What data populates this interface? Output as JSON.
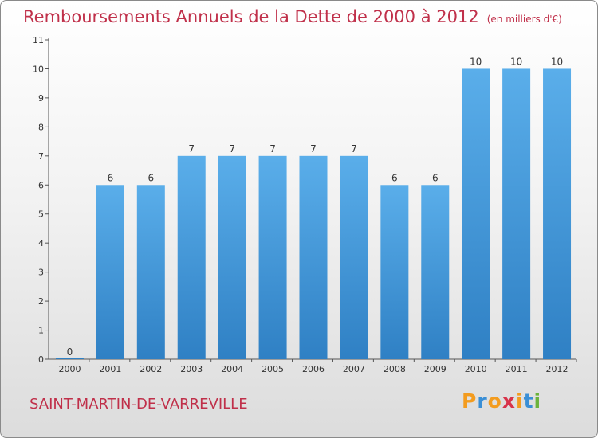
{
  "chart_data": {
    "type": "bar",
    "title": "Remboursements Annuels de la Dette de 2000 à 2012",
    "unit_label": "(en milliers d'€)",
    "xlabel": "",
    "ylabel": "",
    "categories": [
      "2000",
      "2001",
      "2002",
      "2003",
      "2004",
      "2005",
      "2006",
      "2007",
      "2008",
      "2009",
      "2010",
      "2011",
      "2012"
    ],
    "values": [
      0,
      6,
      6,
      7,
      7,
      7,
      7,
      7,
      6,
      6,
      10,
      10,
      10
    ],
    "ylim": [
      0,
      11
    ],
    "yticks": [
      0,
      1,
      2,
      3,
      4,
      5,
      6,
      7,
      8,
      9,
      10,
      11
    ],
    "grid": false,
    "bar_color": "#4a9fe0"
  },
  "commune": "SAINT-MARTIN-DE-VARREVILLE",
  "logo": {
    "letters": [
      "P",
      "r",
      "o",
      "x",
      "i",
      "t",
      "i"
    ],
    "colors": [
      "#f39c1f",
      "#3a8fd6",
      "#f39c1f",
      "#d8334a",
      "#f39c1f",
      "#3a8fd6",
      "#6bb33b"
    ]
  }
}
